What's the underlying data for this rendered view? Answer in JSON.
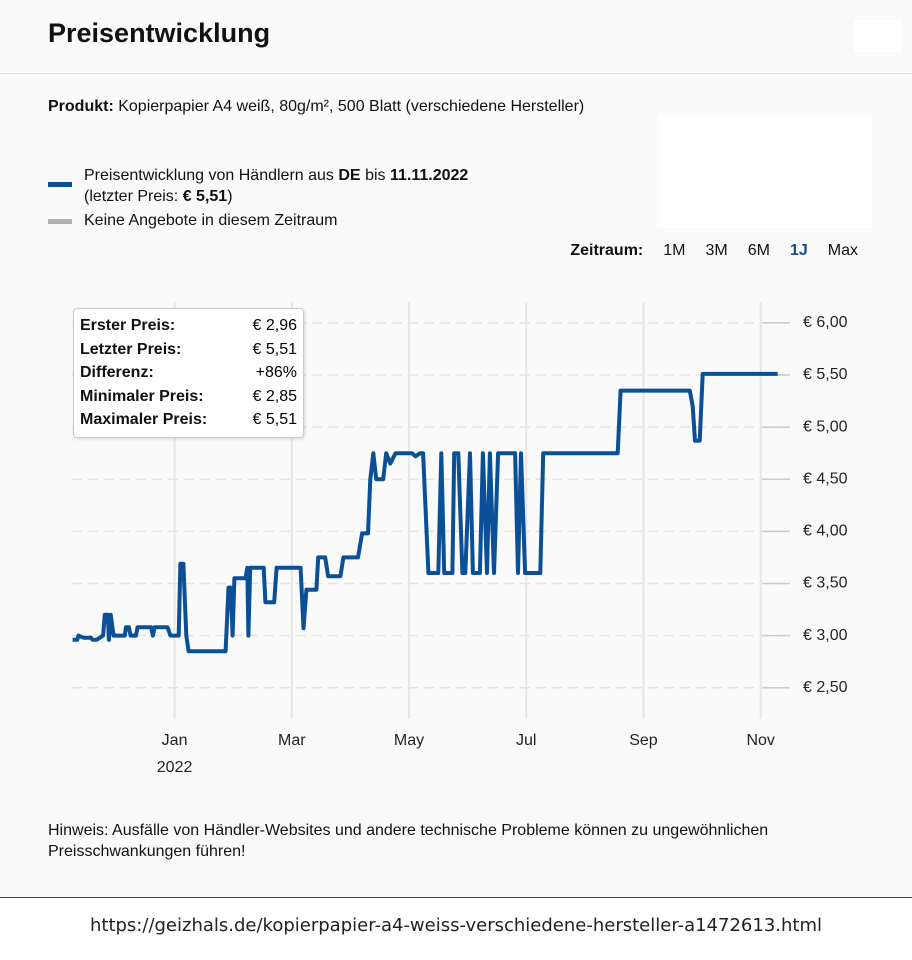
{
  "header": {
    "title": "Preisentwicklung"
  },
  "product": {
    "label": "Produkt:",
    "text": "Kopierpapier A4 weiß, 80g/m², 500 Blatt (verschiedene Hersteller)"
  },
  "legend": {
    "part1": "Preisentwicklung von Händlern aus",
    "country": "DE",
    "part2": "bis",
    "date": "11.11.2022",
    "part3": "(letzter Preis:",
    "last_price": "€ 5,51",
    "part4": ")",
    "no_offers": "Keine Angebote in diesem Zeitraum",
    "no_offers_color": "#b0b0b0"
  },
  "period": {
    "label": "Zeitraum:",
    "options": [
      "1M",
      "3M",
      "6M",
      "1J",
      "Max"
    ],
    "selected": "1J"
  },
  "tooltip": {
    "rows": [
      [
        "Erster Preis:",
        "€ 2,96"
      ],
      [
        "Letzter Preis:",
        "€ 5,51"
      ],
      [
        "Differenz:",
        "+86%"
      ],
      [
        "Minimaler Preis:",
        "€ 2,85"
      ],
      [
        "Maximaler Preis:",
        "€ 5,51"
      ]
    ]
  },
  "chart_data": {
    "type": "line",
    "year_label": "2022",
    "xlim": [
      -1.75,
      10.5
    ],
    "xticks": [
      {
        "value": 0,
        "label": "Jan"
      },
      {
        "value": 2,
        "label": "Mar"
      },
      {
        "value": 4,
        "label": "May"
      },
      {
        "value": 6,
        "label": "Jul"
      },
      {
        "value": 8,
        "label": "Sep"
      },
      {
        "value": 10,
        "label": "Nov"
      }
    ],
    "ylim": [
      2.2,
      6.2
    ],
    "yticks": [
      {
        "value": 2.5,
        "label": "€ 2,50"
      },
      {
        "value": 3,
        "label": "€ 3,00"
      },
      {
        "value": 3.5,
        "label": "€ 3,50"
      },
      {
        "value": 4,
        "label": "€ 4,00"
      },
      {
        "value": 4.5,
        "label": "€ 4,50"
      },
      {
        "value": 5,
        "label": "€ 5,00"
      },
      {
        "value": 5.5,
        "label": "€ 5,50"
      },
      {
        "value": 6,
        "label": "€ 6,00"
      }
    ],
    "grid": true,
    "x": [
      -1.74,
      -1.66,
      -1.64,
      -1.55,
      -1.43,
      -1.4,
      -1.33,
      -1.22,
      -1.19,
      -1.14,
      -1.12,
      -1.09,
      -1.04,
      -0.85,
      -0.83,
      -0.78,
      -0.75,
      -0.66,
      -0.63,
      -0.4,
      -0.37,
      -0.34,
      -0.12,
      -0.07,
      0.07,
      0.1,
      0.15,
      0.2,
      0.24,
      0.87,
      0.92,
      0.96,
      0.99,
      1.02,
      1.21,
      1.24,
      1.26,
      1.29,
      1.52,
      1.55,
      1.7,
      1.74,
      2.15,
      2.2,
      2.25,
      2.42,
      2.45,
      2.57,
      2.62,
      2.83,
      2.88,
      3.13,
      3.2,
      3.3,
      3.34,
      3.39,
      3.44,
      3.56,
      3.61,
      3.68,
      3.77,
      4.05,
      4.11,
      4.19,
      4.24,
      4.33,
      4.5,
      4.55,
      4.6,
      4.74,
      4.77,
      4.84,
      4.91,
      4.96,
      5.04,
      5.09,
      5.21,
      5.26,
      5.33,
      5.38,
      5.45,
      5.52,
      5.81,
      5.86,
      5.91,
      5.98,
      6.24,
      6.29,
      7.56,
      7.61,
      8.79,
      8.84,
      8.88,
      8.96,
      9.01,
      10.29
    ],
    "series": [
      {
        "color": "#0b4f96",
        "values": [
          2.96,
          2.96,
          3.0,
          2.98,
          2.98,
          2.96,
          2.96,
          3.0,
          3.2,
          3.2,
          2.96,
          3.2,
          3.0,
          3.0,
          3.08,
          3.08,
          3.0,
          3.0,
          3.08,
          3.08,
          3.0,
          3.08,
          3.08,
          3.0,
          3.0,
          3.69,
          3.69,
          3.0,
          2.85,
          2.85,
          3.46,
          3.46,
          3.0,
          3.55,
          3.55,
          3.65,
          3.0,
          3.65,
          3.65,
          3.32,
          3.32,
          3.65,
          3.65,
          3.07,
          3.44,
          3.44,
          3.75,
          3.75,
          3.57,
          3.57,
          3.75,
          3.75,
          3.98,
          3.98,
          4.5,
          4.75,
          4.5,
          4.5,
          4.75,
          4.65,
          4.75,
          4.75,
          4.72,
          4.75,
          4.75,
          3.6,
          3.6,
          4.75,
          3.6,
          3.6,
          4.75,
          4.75,
          3.6,
          3.6,
          4.75,
          3.6,
          3.6,
          4.75,
          3.6,
          4.75,
          3.6,
          4.75,
          4.75,
          3.6,
          4.75,
          3.6,
          3.6,
          4.75,
          4.75,
          5.35,
          5.35,
          5.2,
          4.87,
          4.87,
          5.51,
          5.51
        ]
      }
    ]
  },
  "notice": "Hinweis: Ausfälle von Händler-Websites und andere technische Probleme können zu ungewöhnlichen Preisschwankungen führen!",
  "url": "https://geizhals.de/kopierpapier-a4-weiss-verschiedene-hersteller-a1472613.html"
}
